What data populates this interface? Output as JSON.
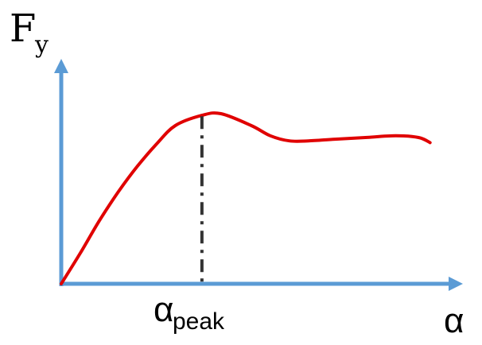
{
  "chart_data": {
    "type": "line",
    "ylabel_main": "F",
    "ylabel_sub": "y",
    "xlabel": "α",
    "marker_label_main": "α",
    "marker_label_sub": "peak",
    "x_marker": 0.37,
    "xlim": [
      0,
      1
    ],
    "ylim": [
      0,
      1
    ],
    "series": [
      {
        "color": "#e00000",
        "x": [
          0,
          0.05,
          0.1,
          0.15,
          0.2,
          0.25,
          0.3,
          0.37,
          0.42,
          0.5,
          0.55,
          0.6,
          0.65,
          0.72,
          0.8,
          0.88,
          0.94,
          0.97
        ],
        "y": [
          0,
          0.18,
          0.37,
          0.54,
          0.69,
          0.82,
          0.93,
          0.99,
          1.0,
          0.93,
          0.87,
          0.84,
          0.84,
          0.85,
          0.86,
          0.87,
          0.86,
          0.83
        ]
      }
    ],
    "axis_color": "#5b9bd5",
    "marker_color": "#333333"
  }
}
